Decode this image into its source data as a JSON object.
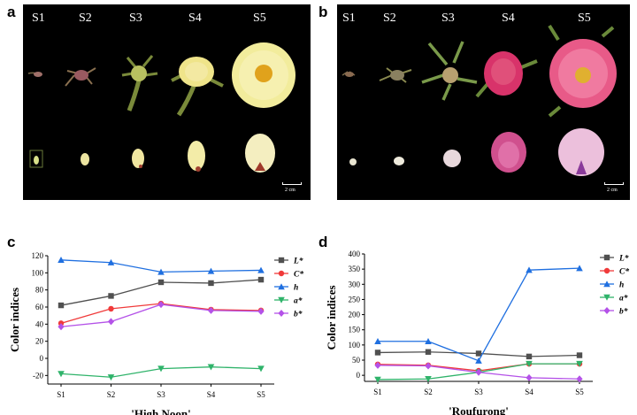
{
  "panels": {
    "a": {
      "letter": "a",
      "stages": [
        "S1",
        "S2",
        "S3",
        "S4",
        "S5"
      ],
      "scale": "2 cm"
    },
    "b": {
      "letter": "b",
      "stages": [
        "S1",
        "S2",
        "S3",
        "S4",
        "S5"
      ],
      "scale": "2 cm"
    },
    "c": {
      "letter": "c"
    },
    "d": {
      "letter": "d"
    }
  },
  "colors": {
    "L": "#505050",
    "C": "#f03a3a",
    "h": "#1f6fe0",
    "a": "#2fb36a",
    "b": "#b452e8"
  },
  "chart_data": [
    {
      "type": "line",
      "panel": "c",
      "title": "'High Noon'",
      "xlabel": "'High Noon'",
      "ylabel": "Color indices",
      "categories": [
        "S1",
        "S2",
        "S3",
        "S4",
        "S5"
      ],
      "ylim": [
        -30,
        120
      ],
      "yticks": [
        -20,
        0,
        20,
        40,
        60,
        80,
        100,
        120
      ],
      "legend_position": "right",
      "series": [
        {
          "name": "L*",
          "values": [
            62,
            73,
            89,
            88,
            92
          ]
        },
        {
          "name": "C*",
          "values": [
            41,
            58,
            64,
            57,
            56
          ]
        },
        {
          "name": "h",
          "values": [
            115,
            112,
            101,
            102,
            103
          ]
        },
        {
          "name": "a*",
          "values": [
            -18,
            -22,
            -12,
            -10,
            -12
          ]
        },
        {
          "name": "b*",
          "values": [
            37,
            43,
            63,
            56,
            55
          ]
        }
      ]
    },
    {
      "type": "line",
      "panel": "d",
      "title": "'Roufurong'",
      "xlabel": "'Roufurong'",
      "ylabel": "Color indices",
      "categories": [
        "S1",
        "S2",
        "S3",
        "S4",
        "S5"
      ],
      "ylim": [
        -20,
        400
      ],
      "yticks": [
        0,
        50,
        100,
        150,
        200,
        250,
        300,
        350,
        400
      ],
      "legend_position": "right",
      "series": [
        {
          "name": "L*",
          "values": [
            75,
            77,
            72,
            62,
            66
          ]
        },
        {
          "name": "C*",
          "values": [
            36,
            33,
            15,
            38,
            38
          ]
        },
        {
          "name": "h",
          "values": [
            112,
            112,
            48,
            347,
            353
          ]
        },
        {
          "name": "a*",
          "values": [
            -14,
            -12,
            10,
            38,
            38
          ]
        },
        {
          "name": "b*",
          "values": [
            33,
            31,
            10,
            -8,
            -12
          ]
        }
      ]
    }
  ]
}
